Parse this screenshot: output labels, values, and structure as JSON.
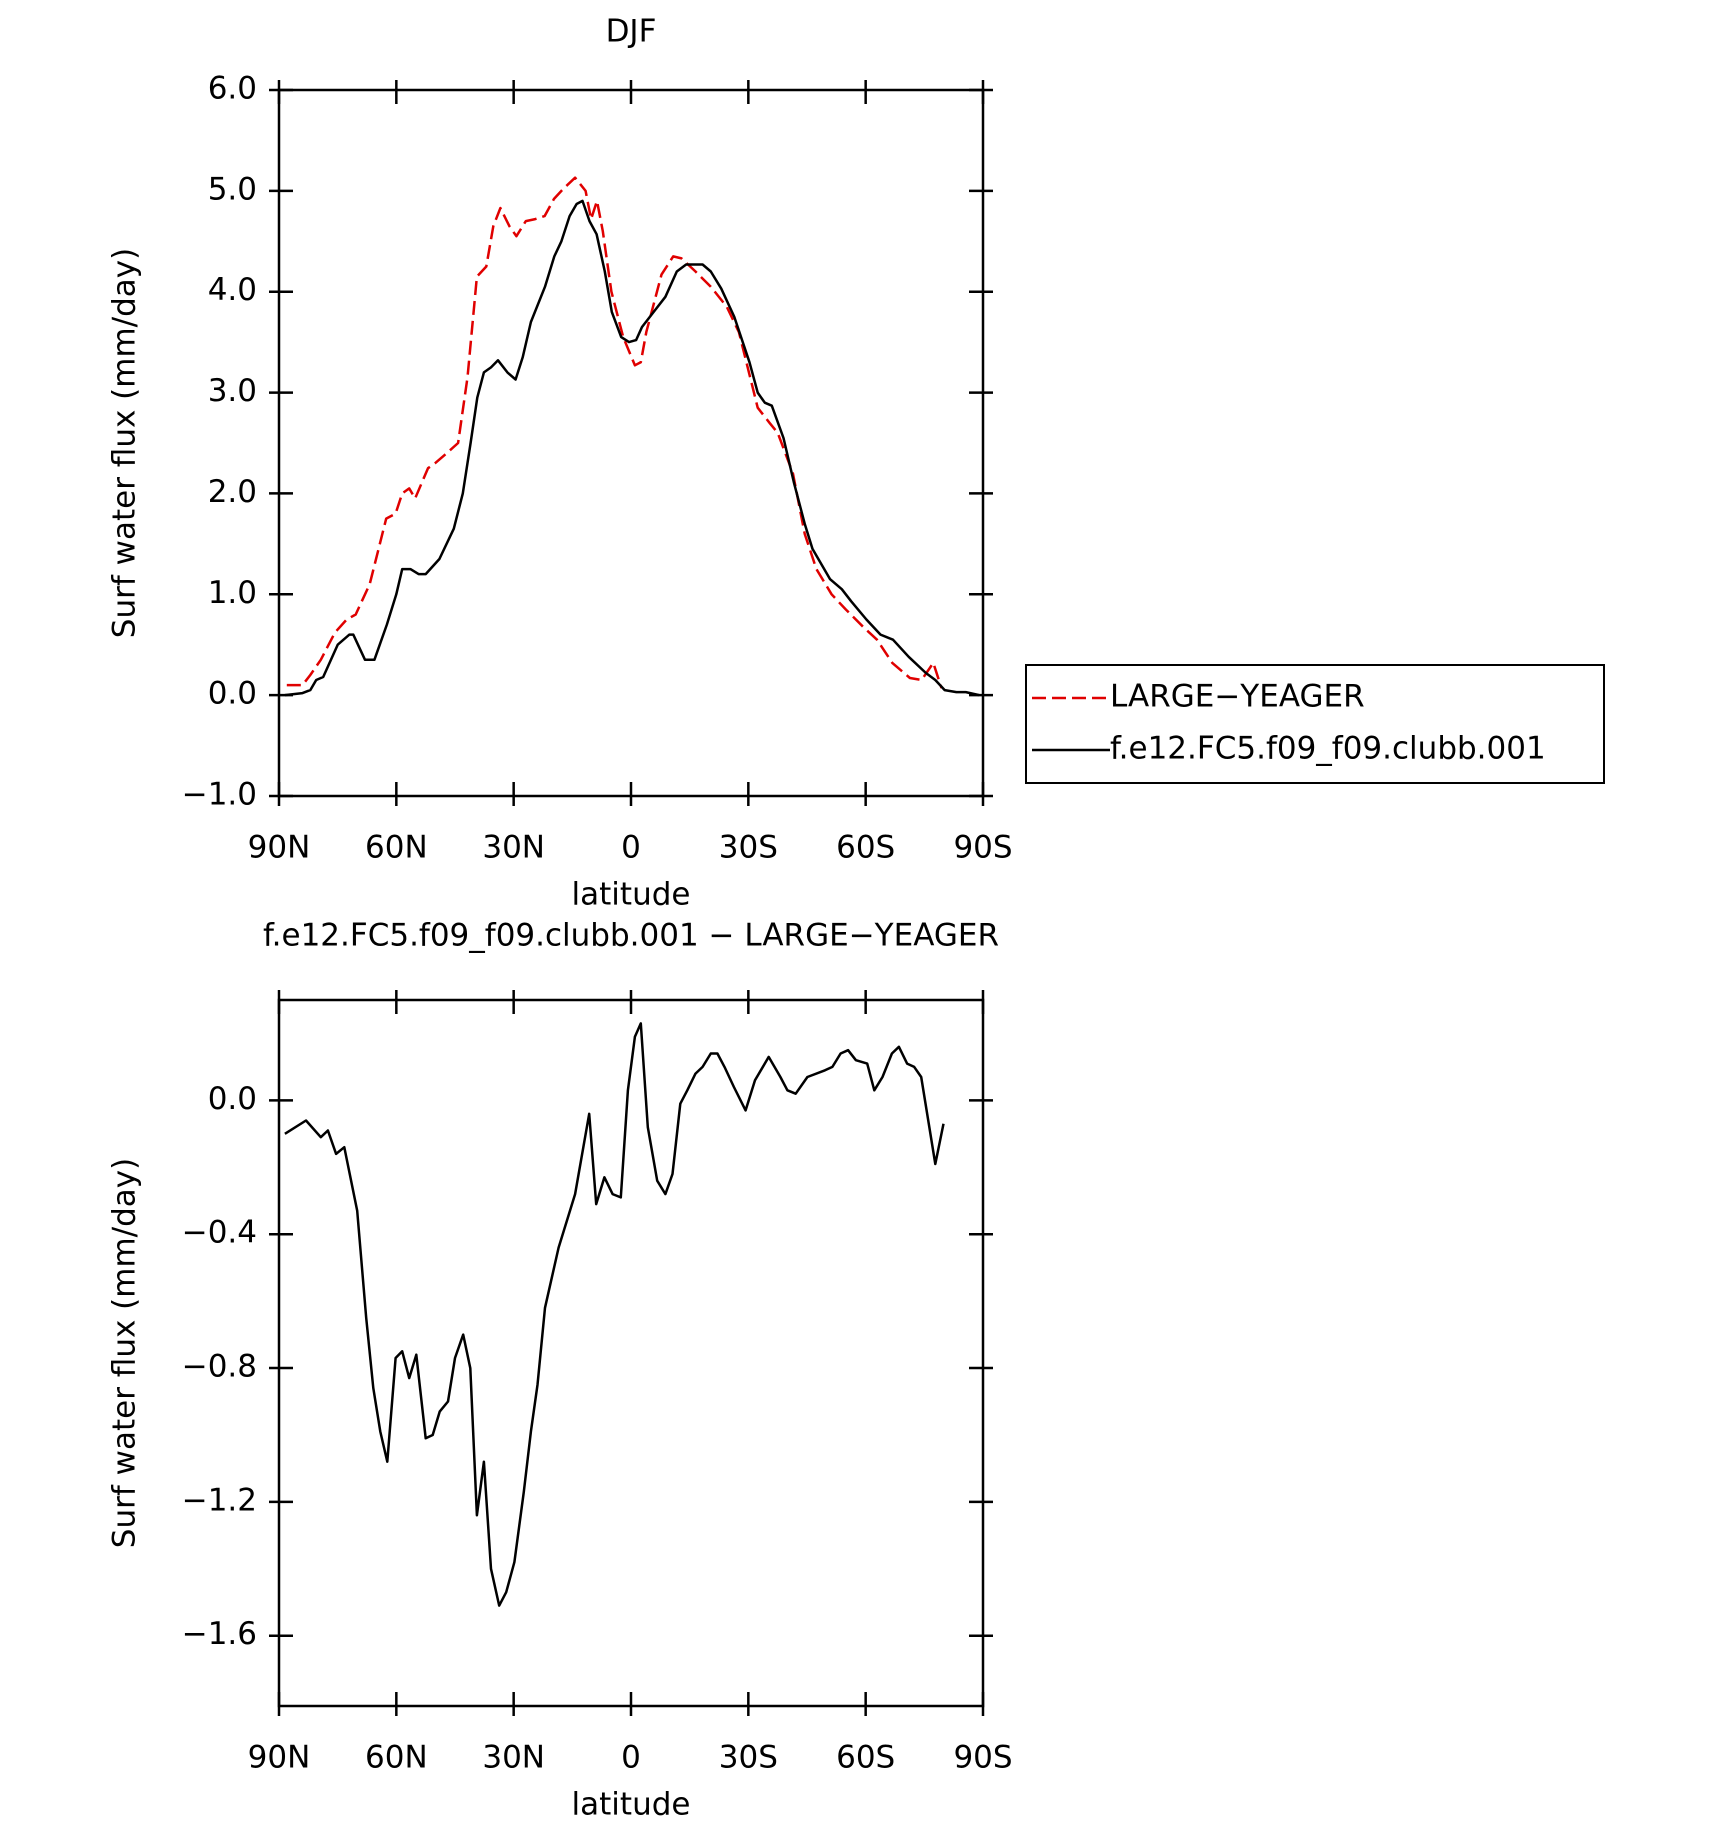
{
  "chart_data": [
    {
      "type": "line",
      "title": "DJF",
      "xlabel": "latitude",
      "ylabel": "Surf water flux (mm/day)",
      "xlim": [
        90,
        -90
      ],
      "xticks": [
        {
          "value": 90,
          "label": "90N"
        },
        {
          "value": 60,
          "label": "60N"
        },
        {
          "value": 30,
          "label": "30N"
        },
        0,
        {
          "value": -30,
          "label": "30S"
        },
        {
          "value": -60,
          "label": "60S"
        },
        {
          "value": -90,
          "label": "90S"
        }
      ],
      "ylim": [
        -1,
        6
      ],
      "yticks": [
        {
          "value": -1,
          "label": "−1.0"
        },
        {
          "value": 0,
          "label": "0.0"
        },
        {
          "value": 1,
          "label": "1.0"
        },
        {
          "value": 2,
          "label": "2.0"
        },
        {
          "value": 3,
          "label": "3.0"
        },
        {
          "value": 4,
          "label": "4.0"
        },
        {
          "value": 5,
          "label": "5.0"
        },
        {
          "value": 6,
          "label": "6.0"
        }
      ],
      "legend": "right",
      "series": [
        {
          "name": "LARGE−YEAGER",
          "color": "#e00000",
          "dashed": true,
          "x": [
            88,
            84,
            82,
            79.3,
            75.7,
            72.7,
            70.4,
            66.8,
            62.6,
            60.2,
            58.5,
            56.7,
            55.2,
            51.9,
            50.1,
            47.1,
            44.2,
            41.8,
            39.4,
            37,
            35.2,
            33.4,
            31.1,
            29.3,
            26.9,
            24.5,
            22.1,
            19.7,
            17.3,
            14.3,
            11.6,
            10.2,
            8.7,
            7.2,
            5,
            2,
            -1,
            -2.5,
            -3.9,
            -7.8,
            -10.8,
            -12.9,
            -16.5,
            -20.4,
            -24.5,
            -27.6,
            -32.4,
            -35.4,
            -37.5,
            -41.4,
            -44.4,
            -47.4,
            -51.3,
            -54.9,
            -59.3,
            -62.9,
            -66.8,
            -71.3,
            -74.3,
            -77.3,
            -79.4
          ],
          "values": [
            0.1,
            0.1,
            0.2,
            0.35,
            0.62,
            0.75,
            0.8,
            1.1,
            1.75,
            1.8,
            2.0,
            2.05,
            1.95,
            2.25,
            2.3,
            2.4,
            2.5,
            3.15,
            4.15,
            4.25,
            4.65,
            4.83,
            4.65,
            4.55,
            4.7,
            4.72,
            4.75,
            4.92,
            5.02,
            5.13,
            5.0,
            4.72,
            4.9,
            4.6,
            4.0,
            3.55,
            3.27,
            3.3,
            3.6,
            4.17,
            4.35,
            4.33,
            4.2,
            4.05,
            3.85,
            3.6,
            2.85,
            2.7,
            2.6,
            2.2,
            1.6,
            1.25,
            1.0,
            0.85,
            0.68,
            0.55,
            0.32,
            0.17,
            0.15,
            0.32,
            0.07
          ]
        },
        {
          "name": "f.e12.FC5.f09_f09.clubb.001",
          "color": "#000000",
          "dashed": false,
          "x": [
            88.5,
            84,
            82,
            80.5,
            78.7,
            75,
            72,
            71,
            68,
            65.6,
            62.4,
            60,
            58.5,
            56.4,
            54.3,
            52.5,
            49,
            45.3,
            43,
            41,
            39.3,
            37.6,
            35.8,
            34,
            31.6,
            29.5,
            27.7,
            25.6,
            22,
            19.6,
            17.8,
            15.7,
            13.9,
            12.4,
            10.6,
            8.8,
            6.7,
            4.9,
            2.5,
            0.5,
            -1.3,
            -2.8,
            -5.8,
            -8.8,
            -11.7,
            -14.1,
            -18.3,
            -20.4,
            -23.1,
            -26.4,
            -30.3,
            -32.4,
            -34.2,
            -36,
            -39,
            -41.7,
            -44.4,
            -46.4,
            -50.9,
            -53.9,
            -56.3,
            -60.2,
            -63.8,
            -67,
            -71,
            -75.4,
            -77.8,
            -80.2,
            -83.2,
            -85.6,
            -89
          ],
          "values": [
            0.0,
            0.02,
            0.05,
            0.15,
            0.18,
            0.5,
            0.6,
            0.6,
            0.35,
            0.35,
            0.7,
            1.0,
            1.25,
            1.25,
            1.2,
            1.2,
            1.35,
            1.65,
            2.0,
            2.5,
            2.95,
            3.2,
            3.25,
            3.32,
            3.2,
            3.13,
            3.35,
            3.7,
            4.05,
            4.35,
            4.5,
            4.75,
            4.87,
            4.9,
            4.7,
            4.57,
            4.2,
            3.8,
            3.55,
            3.5,
            3.52,
            3.65,
            3.8,
            3.95,
            4.2,
            4.27,
            4.27,
            4.2,
            4.03,
            3.75,
            3.3,
            3.0,
            2.9,
            2.87,
            2.55,
            2.1,
            1.7,
            1.45,
            1.15,
            1.05,
            0.93,
            0.75,
            0.6,
            0.55,
            0.38,
            0.22,
            0.15,
            0.05,
            0.03,
            0.03,
            0.0
          ]
        }
      ]
    },
    {
      "type": "line",
      "title": "f.e12.FC5.f09_f09.clubb.001 − LARGE−YEAGER",
      "xlabel": "latitude",
      "ylabel": "Surf water flux (mm/day)",
      "xlim": [
        90,
        -90
      ],
      "xticks": [
        {
          "value": 90,
          "label": "90N"
        },
        {
          "value": 60,
          "label": "60N"
        },
        {
          "value": 30,
          "label": "30N"
        },
        0,
        {
          "value": -30,
          "label": "30S"
        },
        {
          "value": -60,
          "label": "60S"
        },
        {
          "value": -90,
          "label": "90S"
        }
      ],
      "ylim": [
        -1.81,
        0.3
      ],
      "yticks": [
        {
          "value": -1.6,
          "label": "−1.6"
        },
        {
          "value": -1.2,
          "label": "−1.2"
        },
        {
          "value": -0.8,
          "label": "−0.8"
        },
        {
          "value": -0.4,
          "label": "−0.4"
        },
        {
          "value": 0,
          "label": "0.0"
        }
      ],
      "series": [
        {
          "color": "#000000",
          "dashed": false,
          "x": [
            88.5,
            83.1,
            79.3,
            77.5,
            75.4,
            73.3,
            70,
            67.7,
            65.9,
            64.1,
            62.3,
            60.2,
            58.5,
            56.7,
            54.9,
            52.5,
            50.7,
            48.9,
            46.8,
            45,
            42.9,
            41.1,
            39.4,
            37.6,
            35.8,
            33.7,
            31.9,
            29.8,
            27.4,
            25.6,
            23.9,
            22,
            18.5,
            14.3,
            10.7,
            8.9,
            6.8,
            4.7,
            2.6,
            0.8,
            -1,
            -2.5,
            -4.3,
            -6.7,
            -8.8,
            -10.6,
            -12.6,
            -14.4,
            -16.5,
            -18.3,
            -20.4,
            -22.1,
            -23.9,
            -26.3,
            -29.3,
            -31.7,
            -35.2,
            -38.2,
            -40,
            -42.1,
            -45.1,
            -49.6,
            -51.5,
            -53.6,
            -55.5,
            -57.5,
            -60.4,
            -62.2,
            -64.3,
            -66.7,
            -68.5,
            -70.6,
            -72.4,
            -74.2,
            -77.8,
            -79.9
          ],
          "values": [
            -0.1,
            -0.06,
            -0.11,
            -0.09,
            -0.16,
            -0.14,
            -0.33,
            -0.65,
            -0.86,
            -0.99,
            -1.08,
            -0.77,
            -0.75,
            -0.83,
            -0.76,
            -1.01,
            -1.0,
            -0.93,
            -0.9,
            -0.77,
            -0.7,
            -0.8,
            -1.24,
            -1.08,
            -1.4,
            -1.51,
            -1.47,
            -1.38,
            -1.17,
            -0.99,
            -0.85,
            -0.62,
            -0.44,
            -0.28,
            -0.04,
            -0.31,
            -0.23,
            -0.28,
            -0.29,
            0.03,
            0.19,
            0.23,
            -0.08,
            -0.24,
            -0.28,
            -0.22,
            -0.01,
            0.03,
            0.08,
            0.1,
            0.14,
            0.14,
            0.1,
            0.04,
            -0.03,
            0.06,
            0.13,
            0.07,
            0.03,
            0.02,
            0.07,
            0.09,
            0.1,
            0.14,
            0.15,
            0.12,
            0.11,
            0.03,
            0.07,
            0.14,
            0.16,
            0.11,
            0.1,
            0.07,
            -0.19,
            -0.07
          ]
        }
      ]
    }
  ]
}
